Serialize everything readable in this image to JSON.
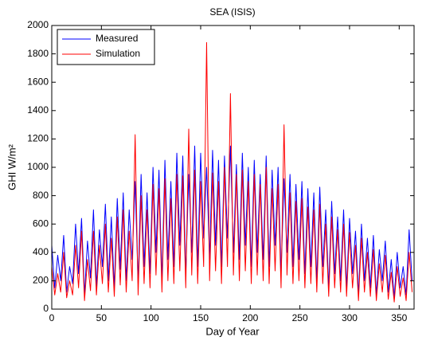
{
  "chart_data": {
    "type": "line",
    "title": "SEA (ISIS)",
    "xlabel": "Day of Year",
    "ylabel": "GHI W/m²",
    "xlim": [
      0,
      365
    ],
    "xticks": [
      0,
      50,
      100,
      150,
      200,
      250,
      300,
      350
    ],
    "ylim": [
      0,
      2000
    ],
    "yticks": [
      0,
      200,
      400,
      600,
      800,
      1000,
      1200,
      1400,
      1600,
      1800,
      2000
    ],
    "legend": "upper left",
    "x": [
      0,
      3,
      6,
      9,
      12,
      15,
      18,
      21,
      24,
      27,
      30,
      33,
      36,
      39,
      42,
      45,
      48,
      51,
      54,
      57,
      60,
      63,
      66,
      69,
      72,
      75,
      78,
      81,
      84,
      87,
      90,
      93,
      96,
      99,
      102,
      105,
      108,
      111,
      114,
      117,
      120,
      123,
      126,
      129,
      132,
      135,
      138,
      141,
      144,
      147,
      150,
      153,
      156,
      159,
      162,
      165,
      168,
      171,
      174,
      177,
      180,
      183,
      186,
      189,
      192,
      195,
      198,
      201,
      204,
      207,
      210,
      213,
      216,
      219,
      222,
      225,
      228,
      231,
      234,
      237,
      240,
      243,
      246,
      249,
      252,
      255,
      258,
      261,
      264,
      267,
      270,
      273,
      276,
      279,
      282,
      285,
      288,
      291,
      294,
      297,
      300,
      303,
      306,
      309,
      312,
      315,
      318,
      321,
      324,
      327,
      330,
      333,
      336,
      339,
      342,
      345,
      348,
      351,
      354,
      357,
      360,
      363
    ],
    "series": [
      {
        "name": "Measured",
        "color": "#0000ff",
        "values": [
          450,
          150,
          380,
          200,
          520,
          120,
          300,
          180,
          600,
          250,
          640,
          100,
          480,
          220,
          700,
          160,
          560,
          300,
          740,
          200,
          650,
          150,
          780,
          280,
          820,
          200,
          700,
          350,
          900,
          180,
          950,
          300,
          820,
          250,
          1000,
          400,
          980,
          200,
          1050,
          350,
          900,
          300,
          1100,
          450,
          1080,
          250,
          950,
          400,
          1150,
          300,
          1100,
          500,
          1000,
          350,
          1120,
          450,
          1050,
          300,
          1080,
          500,
          1150,
          400,
          1020,
          350,
          1100,
          450,
          1000,
          300,
          1050,
          400,
          950,
          350,
          1080,
          300,
          980,
          450,
          1000,
          250,
          920,
          400,
          950,
          300,
          880,
          350,
          900,
          250,
          850,
          300,
          820,
          200,
          860,
          300,
          700,
          150,
          760,
          250,
          650,
          200,
          700,
          150,
          640,
          250,
          550,
          100,
          600,
          200,
          500,
          150,
          520,
          100,
          420,
          200,
          480,
          120,
          350,
          80,
          400,
          150,
          300,
          100,
          560,
          200
        ]
      },
      {
        "name": "Simulation",
        "color": "#ff0000",
        "values": [
          300,
          100,
          250,
          120,
          400,
          80,
          200,
          100,
          450,
          150,
          550,
          60,
          350,
          130,
          550,
          100,
          450,
          180,
          600,
          120,
          500,
          90,
          650,
          170,
          700,
          120,
          550,
          200,
          1230,
          100,
          800,
          180,
          700,
          150,
          880,
          240,
          850,
          120,
          920,
          200,
          780,
          180,
          950,
          270,
          940,
          150,
          1270,
          240,
          980,
          180,
          900,
          300,
          1880,
          200,
          960,
          270,
          900,
          180,
          1000,
          300,
          1520,
          240,
          950,
          200,
          980,
          270,
          900,
          180,
          950,
          240,
          880,
          200,
          1000,
          180,
          850,
          270,
          880,
          150,
          1300,
          240,
          820,
          180,
          760,
          200,
          780,
          150,
          720,
          180,
          700,
          120,
          740,
          180,
          600,
          90,
          650,
          150,
          560,
          120,
          600,
          90,
          540,
          150,
          450,
          60,
          500,
          120,
          400,
          90,
          420,
          60,
          320,
          120,
          380,
          70,
          260,
          50,
          300,
          90,
          220,
          60,
          400,
          120
        ]
      }
    ]
  }
}
